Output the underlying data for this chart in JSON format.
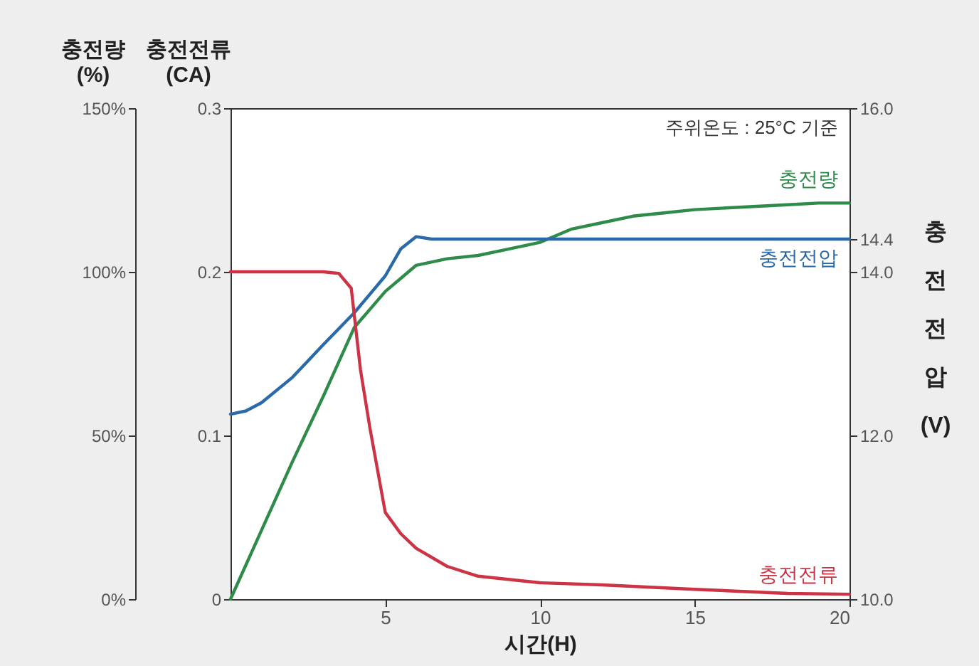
{
  "chart_data": {
    "type": "line",
    "xlabel": "시간(H)",
    "ylabel": "충전전류\n(CA)",
    "y2label": "충전전압(V)",
    "y3label": "충전량\n(%)",
    "annotations": [
      "주위온도 : 25°C 기준"
    ],
    "xlim": [
      0,
      20
    ],
    "xticks": [
      5,
      10,
      15,
      20
    ],
    "ylim": [
      0,
      0.3
    ],
    "yticks": [
      0,
      0.1,
      0.2,
      0.3
    ],
    "y2lim": [
      10,
      16
    ],
    "y2ticks": [
      {
        "value": 10,
        "label": "10.0"
      },
      {
        "value": 12,
        "label": "12.0"
      },
      {
        "value": 14,
        "label": "14.0"
      },
      14.4,
      {
        "value": 16,
        "label": "16.0"
      }
    ],
    "y3lim": [
      0,
      150
    ],
    "y3ticks": [
      {
        "value": 0,
        "label": "0%"
      },
      {
        "value": 50,
        "label": "50%"
      },
      {
        "value": 100,
        "label": "100%"
      },
      {
        "value": 150,
        "label": "150%"
      }
    ],
    "series": [
      {
        "name": "충전량",
        "color": "#2e8b4a",
        "axis": "y3",
        "x": [
          0,
          1,
          2,
          3,
          4,
          5,
          5.5,
          6,
          7,
          8,
          9,
          10,
          11,
          12,
          13,
          14,
          15,
          16,
          17,
          18,
          19,
          20
        ],
        "values": [
          0,
          21,
          42,
          62,
          83,
          94,
          98,
          102,
          104,
          105,
          107,
          109,
          113,
          115,
          117,
          118,
          119,
          119.5,
          120,
          120.5,
          121,
          121
        ]
      },
      {
        "name": "충전전압",
        "color": "#2a6aa8",
        "axis": "y2",
        "x": [
          0,
          0.5,
          1,
          2,
          3,
          4,
          5,
          5.5,
          6,
          6.5,
          8,
          10,
          15,
          20
        ],
        "values": [
          12.26,
          12.3,
          12.4,
          12.71,
          13.11,
          13.5,
          13.95,
          14.28,
          14.43,
          14.4,
          14.4,
          14.4,
          14.4,
          14.4
        ]
      },
      {
        "name": "충전전류",
        "color": "#cc3344",
        "axis": "y",
        "x": [
          0,
          1,
          2,
          3,
          3.5,
          3.9,
          4.2,
          4.5,
          5,
          5.5,
          6,
          7,
          8,
          10,
          12,
          15,
          18,
          20
        ],
        "values": [
          0.2,
          0.2,
          0.2,
          0.2,
          0.199,
          0.19,
          0.14,
          0.105,
          0.053,
          0.04,
          0.031,
          0.02,
          0.014,
          0.01,
          0.0087,
          0.006,
          0.0035,
          0.003
        ]
      }
    ]
  }
}
